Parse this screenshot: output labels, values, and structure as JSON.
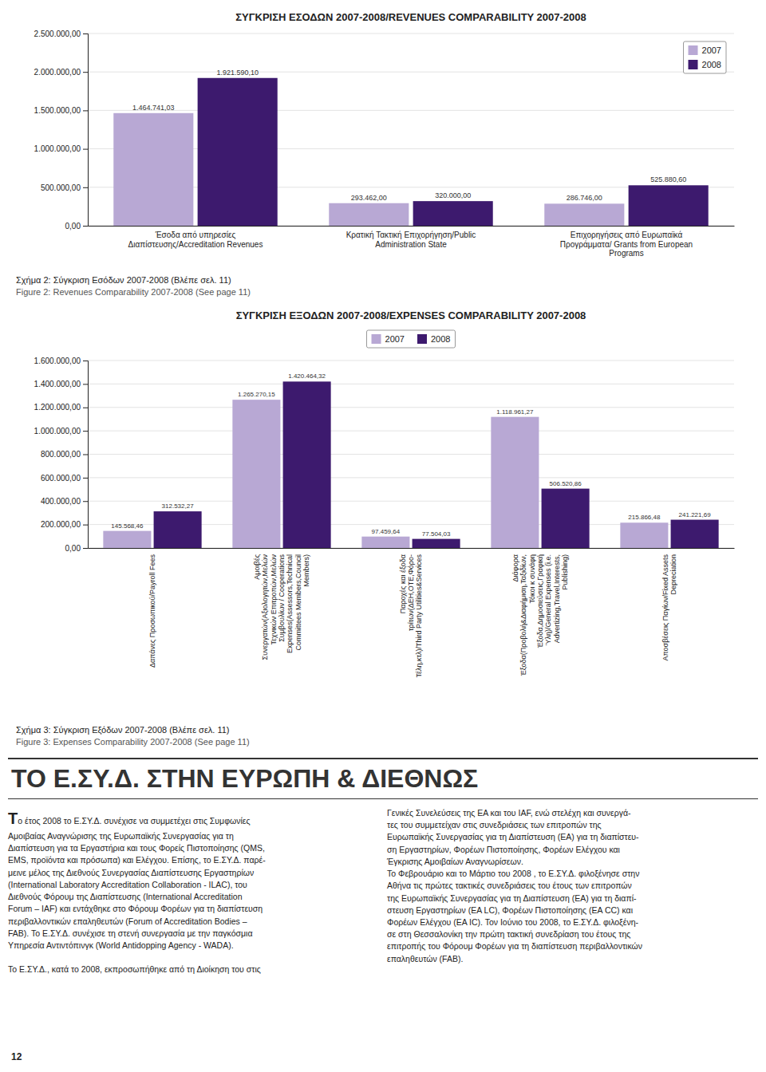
{
  "chart_data": [
    {
      "type": "bar",
      "title": "ΣΥΓΚΡΙΣΗ ΕΣΟΔΩΝ 2007-2008/REVENUES COMPARABILITY 2007-2008",
      "categories": [
        "Έσοδα από υπηρεσίες\nΔιαπίστευσης/Accreditation Revenues",
        "Κρατική Τακτική Επιχορήγηση/Public\nAdministration State",
        "Επιχορηγήσεις από Ευρωπαϊκά\nΠρογράμματα/ Grants from European\nPrograms"
      ],
      "series": [
        {
          "name": "2007",
          "color": "#b8a8d4",
          "values": [
            1464741.03,
            293462.0,
            286746.0
          ],
          "value_labels": [
            "1.464.741,03",
            "293.462,00",
            "286.746,00"
          ]
        },
        {
          "name": "2008",
          "color": "#3d1a6e",
          "values": [
            1921590.1,
            320000.0,
            525880.6
          ],
          "value_labels": [
            "1.921.590,10",
            "320.000,00",
            "525.880,60"
          ]
        }
      ],
      "ylim": [
        0,
        2500000
      ],
      "yticks": [
        {
          "value": 0,
          "label": "0,00"
        },
        {
          "value": 500000,
          "label": "500.000,00"
        },
        {
          "value": 1000000,
          "label": "1.000.000,00"
        },
        {
          "value": 1500000,
          "label": "1.500.000,00"
        },
        {
          "value": 2000000,
          "label": "2.000.000,00"
        },
        {
          "value": 2500000,
          "label": "2.500.000,00"
        }
      ],
      "grid": true,
      "legend": "top-right",
      "data_labels": true,
      "caption": [
        "Σχήμα 2: Σύγκριση Εσόδων 2007-2008 (Βλέπε σελ. 11)",
        "Figure 2: Revenues Comparability 2007-2008 (See page 11)"
      ]
    },
    {
      "type": "bar",
      "title": "ΣΥΓΚΡΙΣΗ ΕΞΟΔΩΝ 2007-2008/EXPENSES COMPARABILITY 2007-2008",
      "categories": [
        "Δαπάνες Προσωπικού/Payroll Fees",
        "Αμοιβές\nΣυνεργατών(Αξιολογητών,Μελών\nΤεχνικών Επιτροπών,Μελών\nΣυμβουλίων / Cooperations\nExpenses(Assessors,Technical\nCommittees Members,Council\nMembers)",
        "Παροχές και έξοδα\nτρίτων(ΔΕΗ,ΟΤΕ,Φόρο-\nΤέλη,κτλ)/Third Party Utilities&Services",
        "Διάφορα\nΈξοδα(Προβολή&Διαφήμιση,Ταξιδίων,\nΤόκοι κ συνάφη\nΈξοδα,Δημοσιεύσεις,Γραφική\nΎλη)/General Expenses (i.e.\nAdvertizing,Travel,Interests,\nPublishing)",
        "Αποσβέσεις Παγίων/Fixed Assets\nDepreciation"
      ],
      "series": [
        {
          "name": "2007",
          "color": "#b8a8d4",
          "values": [
            145568.46,
            1265270.15,
            97459.64,
            1118961.27,
            215866.48
          ],
          "value_labels": [
            "145.568,46",
            "1.265.270,15",
            "97.459,64",
            "1.118.961,27",
            "215.866,48"
          ]
        },
        {
          "name": "2008",
          "color": "#3d1a6e",
          "values": [
            312532.27,
            1420464.32,
            77504.03,
            506520.86,
            241221.69
          ],
          "value_labels": [
            "312.532,27",
            "1.420.464,32",
            "77.504,03",
            "506.520,86",
            "241.221,69"
          ]
        }
      ],
      "ylim": [
        0,
        1600000
      ],
      "yticks": [
        {
          "value": 0,
          "label": "0,00"
        },
        {
          "value": 200000,
          "label": "200.000,00"
        },
        {
          "value": 400000,
          "label": "400.000,00"
        },
        {
          "value": 600000,
          "label": "600.000,00"
        },
        {
          "value": 800000,
          "label": "800.000,00"
        },
        {
          "value": 1000000,
          "label": "1.000.000,00"
        },
        {
          "value": 1200000,
          "label": "1.200.000,00"
        },
        {
          "value": 1400000,
          "label": "1.400.000,00"
        },
        {
          "value": 1600000,
          "label": "1.600.000,00"
        }
      ],
      "grid": true,
      "legend": "top",
      "data_labels": true,
      "caption": [
        "Σχήμα 3: Σύγκριση Εξόδων 2007-2008 (Βλέπε σελ. 11)",
        "Figure 3: Expenses Comparability 2007-2008 (See page 11)"
      ]
    }
  ],
  "heading": "ΤΟ Ε.ΣΥ.Δ. ΣΤΗΝ ΕΥΡΩΠΗ & ΔΙΕΘΝΩΣ",
  "body_left_initial": "T",
  "body_left": "ο έτος 2008 το Ε.ΣΥ.Δ. συνέχισε να συμμετέχει στις Συμφωνίες\nΑμοιβαίας Αναγνώρισης της Ευρωπαϊκής Συνεργασίας για τη\nΔιαπίστευση για τα Εργαστήρια και τους Φορείς Πιστοποίησης (QMS,\nEMS, προϊόντα και πρόσωπα) και Ελέγχου. Επίσης, το Ε.ΣΥ.Δ. παρέ-\nμεινε μέλος της Διεθνούς Συνεργασίας Διαπίστευσης Εργαστηρίων\n(International Laboratory Accreditation Collaboration - ILAC), του\nΔιεθνούς Φόρουμ της Διαπίστευσης (International Accreditation\nForum – IAF) και εντάχθηκε στο Φόρουμ Φορέων για τη διαπίστευση\nπεριβαλλοντικών επαληθευτών (Forum of Accreditation Bodies –\nFAB). Το Ε.ΣΥ.Δ. συνέχισε τη στενή συνεργασία με την παγκόσμια\nΥπηρεσία Αντιντόπινγκ (World Antidopping Agency - WADA).\n\nΤο Ε.ΣΥ.Δ., κατά το 2008, εκπροσωπήθηκε από τη Διοίκηση του στις",
  "body_right": "Γενικές Συνελεύσεις της ΕΑ και του ΙΑF, ενώ στελέχη και συνεργά-\nτες του συμμετείχαν στις συνεδριάσεις των επιτροπών της\nΕυρωπαϊκής Συνεργασίας για τη Διαπίστευση (ΕΑ) για τη διαπίστευ-\nση Εργαστηρίων, Φορέων Πιστοποίησης, Φορέων Ελέγχου και\nΈγκρισης Αμοιβαίων Αναγνωρίσεων.\nΤο Φεβρουάριο και το Μάρτιο του 2008 , το Ε.ΣΥ.Δ. φιλοξένησε στην\nΑθήνα τις πρώτες τακτικές συνεδριάσεις του έτους των επιτροπών\nτης Ευρωπαϊκής Συνεργασίας για τη Διαπίστευση (ΕΑ) για τη διαπί-\nστευση Εργαστηρίων (ΕΑ LC), Φορέων Πιστοποίησης (ΕΑ CC) και\nΦορέων Ελέγχου (ΕΑ IC). Τον Ιούνιο του 2008, το Ε.ΣΥ.Δ. φιλοξένη-\nσε στη Θεσσαλονίκη την πρώτη τακτική συνεδρίαση του έτους της\nεπιτροπής του Φόρουμ Φορέων για τη διαπίστευση περιβαλλοντικών\nεπαληθευτών (FAB).",
  "page_number": "12"
}
